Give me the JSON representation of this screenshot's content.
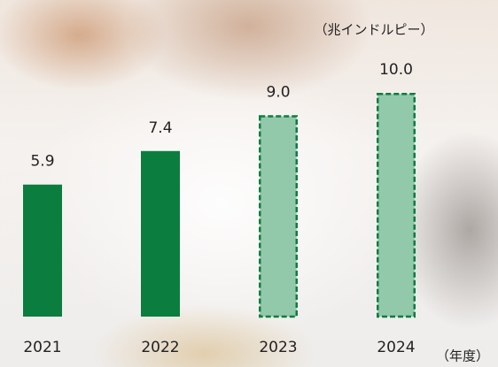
{
  "chart_data": {
    "type": "bar",
    "y_unit": "（兆インドルピー）",
    "x_unit": "（年度）",
    "categories": [
      "2021",
      "2022",
      "2023",
      "2024"
    ],
    "values": [
      5.9,
      7.4,
      9.0,
      10.0
    ],
    "value_labels": [
      "5.9",
      "7.4",
      "9.0",
      "10.0"
    ],
    "colors": [
      "#0b7d3f",
      "#0b7d3f",
      "#92c9ab",
      "#92c9ab"
    ],
    "dashed": [
      false,
      false,
      true,
      true
    ],
    "grid": false
  }
}
